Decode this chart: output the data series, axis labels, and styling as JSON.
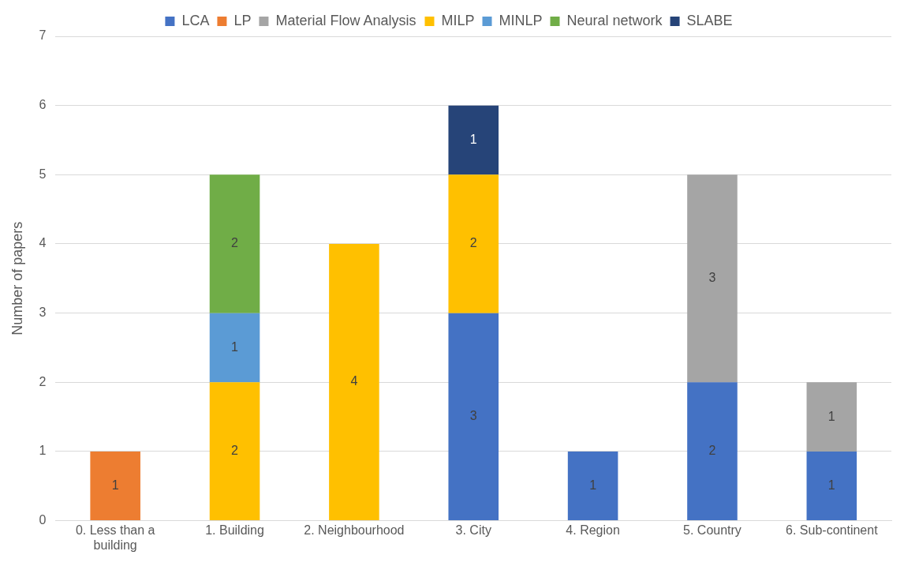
{
  "chart_data": {
    "type": "bar",
    "stacked": true,
    "ylabel": "Number of papers",
    "categories": [
      "0. Less than a building",
      "1. Building",
      "2. Neighbourhood",
      "3. City",
      "4. Region",
      "5. Country",
      "6. Sub-continent"
    ],
    "series": [
      {
        "name": "LCA",
        "color": "#4472c4",
        "values": [
          null,
          null,
          null,
          3,
          1,
          2,
          1
        ]
      },
      {
        "name": "LP",
        "color": "#ed7d31",
        "values": [
          1,
          null,
          null,
          null,
          null,
          null,
          null
        ]
      },
      {
        "name": "Material Flow Analysis",
        "color": "#a5a5a5",
        "values": [
          null,
          null,
          null,
          null,
          null,
          3,
          1
        ]
      },
      {
        "name": "MILP",
        "color": "#ffc000",
        "values": [
          null,
          2,
          4,
          2,
          null,
          null,
          null
        ]
      },
      {
        "name": "MINLP",
        "color": "#5b9bd5",
        "values": [
          null,
          1,
          null,
          null,
          null,
          null,
          null
        ]
      },
      {
        "name": "Neural network",
        "color": "#70ad47",
        "values": [
          null,
          2,
          null,
          null,
          null,
          null,
          null
        ]
      },
      {
        "name": "SLABE",
        "color": "#264478",
        "values": [
          null,
          null,
          null,
          1,
          null,
          null,
          null
        ]
      }
    ],
    "ylim": [
      0,
      7
    ],
    "yticks": [
      0,
      1,
      2,
      3,
      4,
      5,
      6,
      7
    ],
    "grid": "y",
    "legend": "top",
    "data_labels": true
  }
}
